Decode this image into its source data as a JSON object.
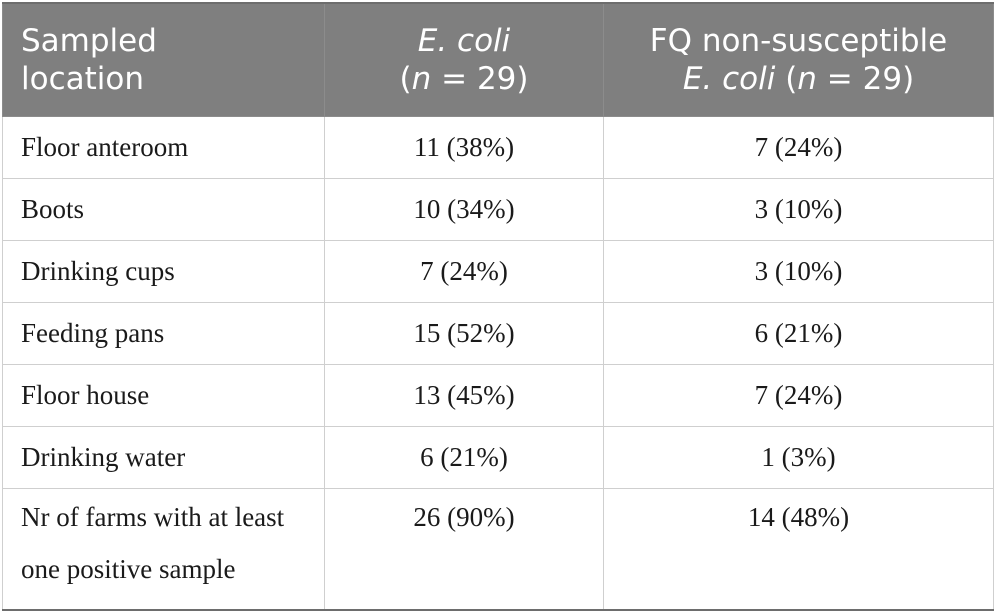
{
  "table": {
    "headers": {
      "col1_line1": "Sampled",
      "col1_line2": "location",
      "col2_line1": "E. coli",
      "col2_line2_open": "(",
      "col2_line2_n": "n",
      "col2_line2_rest": " = 29)",
      "col3_line1": "FQ non-susceptible",
      "col3_line2_ecoli": "E. coli",
      "col3_line2_open": " (",
      "col3_line2_n": "n",
      "col3_line2_rest": " = 29)"
    },
    "rows": [
      {
        "location": "Floor anteroom",
        "ecoli": "11 (38%)",
        "fq": "7 (24%)"
      },
      {
        "location": "Boots",
        "ecoli": "10 (34%)",
        "fq": "3 (10%)"
      },
      {
        "location": "Drinking cups",
        "ecoli": "7 (24%)",
        "fq": "3 (10%)"
      },
      {
        "location": "Feeding pans",
        "ecoli": "15 (52%)",
        "fq": "6 (21%)"
      },
      {
        "location": "Floor house",
        "ecoli": "13 (45%)",
        "fq": "7 (24%)"
      },
      {
        "location": "Drinking water",
        "ecoli": "6 (21%)",
        "fq": "1 (3%)"
      },
      {
        "location": "Nr of farms with at least one positive sample",
        "ecoli": "26 (90%)",
        "fq": "14 (48%)"
      }
    ]
  },
  "colors": {
    "header_bg": "#7f7f7f",
    "header_text": "#ffffff",
    "body_text": "#1a1a1a",
    "grid_line": "#cfcfcf"
  }
}
